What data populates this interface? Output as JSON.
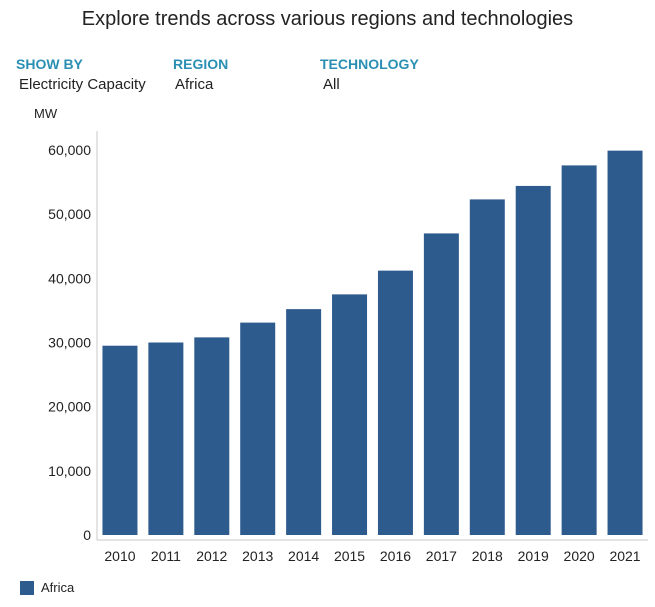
{
  "header": {
    "title": "Explore trends across various regions and technologies"
  },
  "filters": {
    "show_by": {
      "label": "SHOW BY",
      "value": "Electricity Capacity"
    },
    "region": {
      "label": "REGION",
      "value": "Africa"
    },
    "technology": {
      "label": "TECHNOLOGY",
      "value": "All"
    }
  },
  "colors": {
    "bar": "#2e5b8e",
    "filter_label": "#2a8fb3"
  },
  "chart_data": {
    "type": "bar",
    "unit_label": "MW",
    "categories": [
      "2010",
      "2011",
      "2012",
      "2013",
      "2014",
      "2015",
      "2016",
      "2017",
      "2018",
      "2019",
      "2020",
      "2021"
    ],
    "series": [
      {
        "name": "Africa",
        "values": [
          29500,
          30000,
          30800,
          33100,
          35200,
          37500,
          41200,
          47000,
          52300,
          54400,
          57600,
          59900
        ]
      }
    ],
    "yticks": [
      "0",
      "10,000",
      "20,000",
      "30,000",
      "40,000",
      "50,000",
      "60,000"
    ],
    "ylim": [
      0,
      62000
    ],
    "grid": false,
    "legend": "bottom-left"
  }
}
